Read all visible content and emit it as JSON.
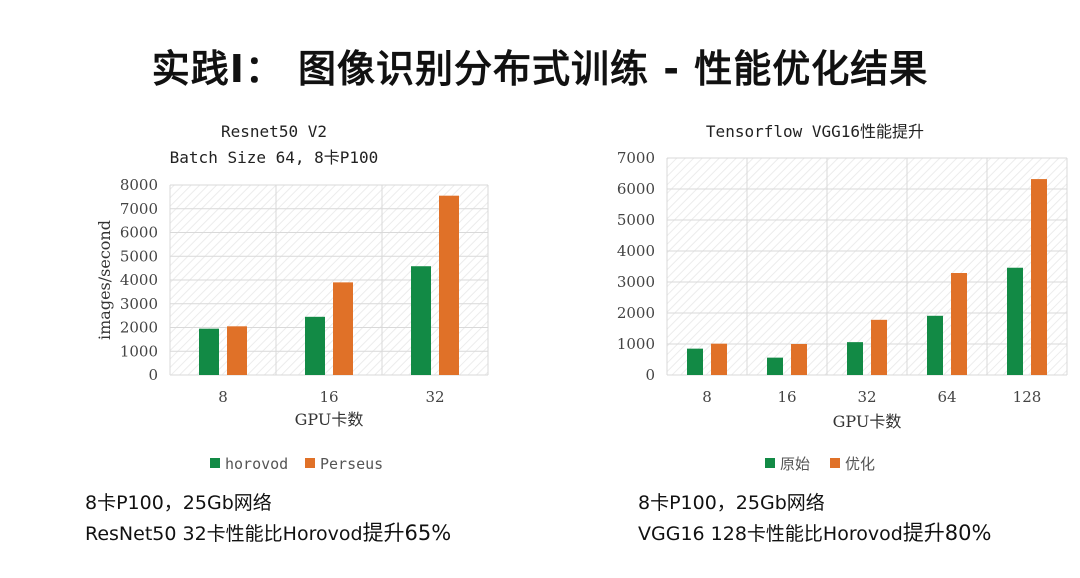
{
  "slide": {
    "title": "实践I： 图像识别分布式训练 - 性能优化结果"
  },
  "colors": {
    "green": "#128a45",
    "orange": "#e07128",
    "grid": "#d9d9d9",
    "hatch": "#ececec"
  },
  "chart_data": [
    {
      "type": "bar",
      "title": [
        "Resnet50 V2",
        "Batch Size 64, 8卡P100"
      ],
      "categories": [
        "8",
        "16",
        "32"
      ],
      "series": [
        {
          "name": "horovod",
          "values": [
            1950,
            2450,
            4580
          ]
        },
        {
          "name": "Perseus",
          "values": [
            2050,
            3900,
            7550
          ]
        }
      ],
      "xlabel": "GPU卡数",
      "ylabel": "images/second",
      "ylim": [
        0,
        8000
      ],
      "yticks": [
        0,
        1000,
        2000,
        3000,
        4000,
        5000,
        6000,
        7000,
        8000
      ],
      "grid": true,
      "legend": "bottom"
    },
    {
      "type": "bar",
      "title": [
        "Tensorflow VGG16性能提升"
      ],
      "categories": [
        "8",
        "16",
        "32",
        "64",
        "128"
      ],
      "series": [
        {
          "name": "原始",
          "values": [
            850,
            560,
            1060,
            1910,
            3460
          ]
        },
        {
          "name": "优化",
          "values": [
            1010,
            1000,
            1780,
            3290,
            6320
          ]
        }
      ],
      "xlabel": "GPU卡数",
      "ylabel": "",
      "ylim": [
        0,
        7000
      ],
      "yticks": [
        0,
        1000,
        2000,
        3000,
        4000,
        5000,
        6000,
        7000
      ],
      "grid": true,
      "legend": "bottom"
    }
  ],
  "notes": {
    "left": {
      "line1": "8卡P100，25Gb网络",
      "line2a": "ResNet50 32卡性能比Horovod",
      "line2b": "提升65%"
    },
    "right": {
      "line1": "8卡P100，25Gb网络",
      "line2a": "VGG16 128卡性能比Horovod",
      "line2b": "提升80%"
    }
  }
}
